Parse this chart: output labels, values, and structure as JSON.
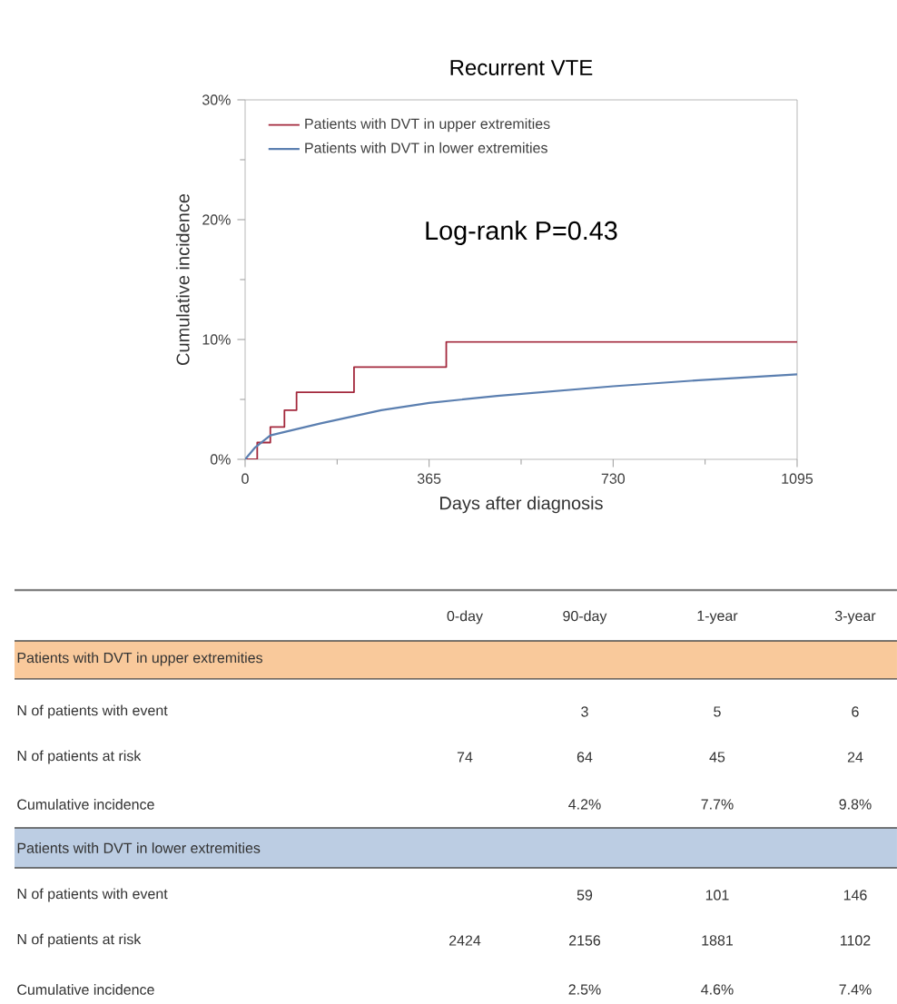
{
  "chart_data": {
    "type": "step",
    "title": "Recurrent VTE",
    "xlabel": "Days after diagnosis",
    "ylabel": "Cumulative incidence",
    "xlim": [
      0,
      1095
    ],
    "xticks": [
      0,
      365,
      730,
      1095
    ],
    "ylim": [
      0,
      30
    ],
    "yticks": [
      {
        "value": 0,
        "label": "0%"
      },
      {
        "value": 10,
        "label": "10%"
      },
      {
        "value": 20,
        "label": "20%"
      },
      {
        "value": 30,
        "label": "30%"
      }
    ],
    "legend": "top left",
    "marker": "none",
    "line_style": "solid",
    "grid": false,
    "series": [
      {
        "name": "Patients with DVT in upper extremities",
        "color": "#a3283c",
        "x": [
          0,
          24,
          50,
          78,
          102,
          216,
          399,
          1095
        ],
        "values": [
          0,
          1.4,
          2.7,
          4.1,
          5.6,
          7.7,
          9.8,
          9.8
        ]
      },
      {
        "name": "Patients with DVT in lower extremities",
        "type": "line",
        "color": "#5b7fb0",
        "x": [
          0,
          20,
          50,
          80,
          150,
          270,
          365,
          500,
          730,
          900,
          1095
        ],
        "values": [
          0,
          1.0,
          2.0,
          2.3,
          3.0,
          4.1,
          4.7,
          5.3,
          6.1,
          6.6,
          7.1
        ]
      }
    ],
    "annotations": [
      "Log-rank P=0.43",
      "0-day",
      "90-day",
      "1-year",
      "3-year",
      "Patients with DVT in upper extremities",
      "N of patients with event",
      "3",
      "5",
      "6",
      "N of patients at risk",
      "74",
      "64",
      "45",
      "24",
      "Cumulative incidence",
      "4.2%",
      "7.7%",
      "9.8%",
      "Patients with DVT in lower extremities",
      "N of patients with event",
      "59",
      "101",
      "146",
      "N of patients at risk",
      "2424",
      "2156",
      "1881",
      "1102",
      "Cumulative incidence",
      "2.5%",
      "4.6%",
      "7.4%"
    ]
  }
}
